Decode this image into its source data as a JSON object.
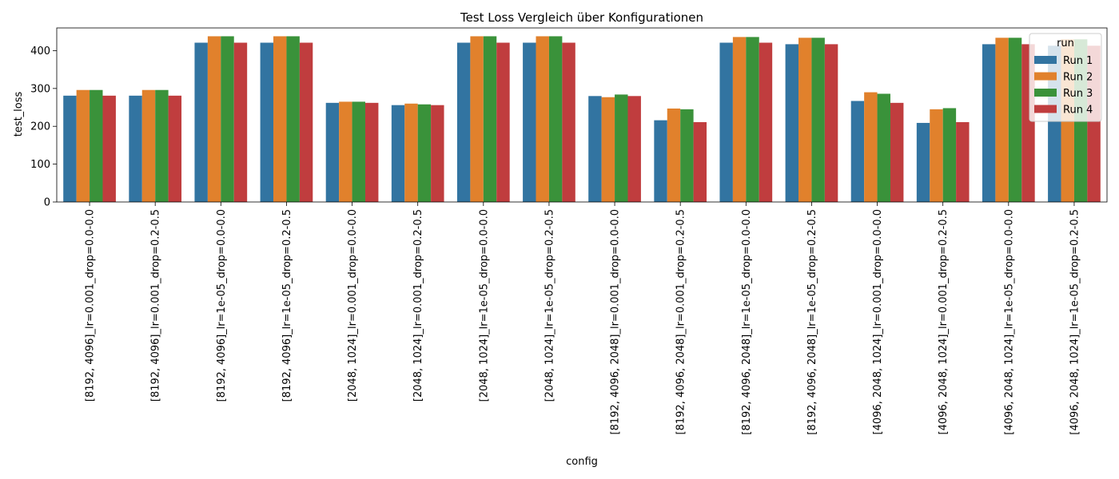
{
  "chart_data": {
    "type": "bar",
    "title": "Test Loss Vergleich über Konfigurationen",
    "xlabel": "config",
    "ylabel": "test_loss",
    "ylim": [
      0,
      460
    ],
    "yticks": [
      0,
      100,
      200,
      300,
      400
    ],
    "grid": false,
    "legend": {
      "title": "run",
      "placement": "top-right"
    },
    "categories": [
      "[8192, 4096]_lr=0.001_drop=0.0-0.0",
      "[8192, 4096]_lr=0.001_drop=0.2-0.5",
      "[8192, 4096]_lr=1e-05_drop=0.0-0.0",
      "[8192, 4096]_lr=1e-05_drop=0.2-0.5",
      "[2048, 1024]_lr=0.001_drop=0.0-0.0",
      "[2048, 1024]_lr=0.001_drop=0.2-0.5",
      "[2048, 1024]_lr=1e-05_drop=0.0-0.0",
      "[2048, 1024]_lr=1e-05_drop=0.2-0.5",
      "[8192, 4096, 2048]_lr=0.001_drop=0.0-0.0",
      "[8192, 4096, 2048]_lr=0.001_drop=0.2-0.5",
      "[8192, 4096, 2048]_lr=1e-05_drop=0.0-0.0",
      "[8192, 4096, 2048]_lr=1e-05_drop=0.2-0.5",
      "[4096, 2048, 1024]_lr=0.001_drop=0.0-0.0",
      "[4096, 2048, 1024]_lr=0.001_drop=0.2-0.5",
      "[4096, 2048, 1024]_lr=1e-05_drop=0.0-0.0",
      "[4096, 2048, 1024]_lr=1e-05_drop=0.2-0.5"
    ],
    "series": [
      {
        "name": "Run 1",
        "color": "#3274a1",
        "values": [
          281,
          281,
          421,
          421,
          262,
          256,
          421,
          421,
          280,
          216,
          421,
          417,
          267,
          209,
          417,
          413
        ]
      },
      {
        "name": "Run 2",
        "color": "#e1812c",
        "values": [
          296,
          296,
          438,
          438,
          265,
          260,
          438,
          438,
          277,
          247,
          436,
          434,
          290,
          245,
          434,
          430
        ]
      },
      {
        "name": "Run 3",
        "color": "#3a923a",
        "values": [
          296,
          296,
          438,
          438,
          265,
          258,
          438,
          438,
          284,
          245,
          436,
          434,
          286,
          248,
          434,
          430
        ]
      },
      {
        "name": "Run 4",
        "color": "#c03d3e",
        "values": [
          281,
          281,
          421,
          421,
          262,
          256,
          421,
          421,
          280,
          211,
          421,
          417,
          262,
          211,
          417,
          413
        ]
      }
    ]
  }
}
